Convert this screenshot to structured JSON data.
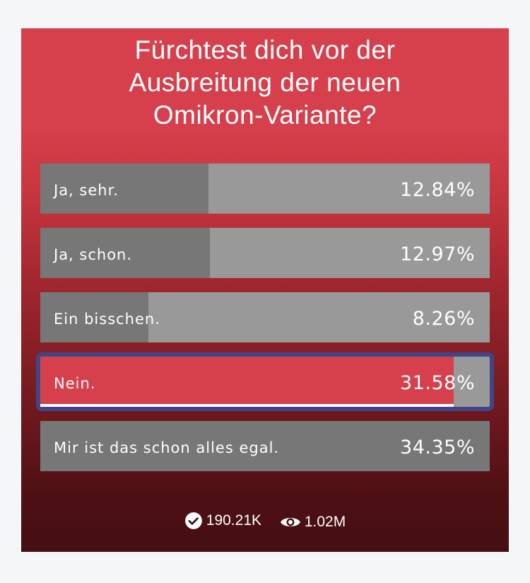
{
  "poll": {
    "title_lines": [
      "Fürchtest dich vor der",
      "Ausbreitung der neuen",
      "Omikron-Variante?"
    ],
    "options": [
      {
        "label": "Ja, sehr.",
        "percent_text": "12.84%",
        "percent": 12.84
      },
      {
        "label": "Ja, schon.",
        "percent_text": "12.97%",
        "percent": 12.97
      },
      {
        "label": "Ein bisschen.",
        "percent_text": "8.26%",
        "percent": 8.26
      },
      {
        "label": "Nein.",
        "percent_text": "31.58%",
        "percent": 31.58,
        "selected": true
      },
      {
        "label": "Mir ist das schon alles egal.",
        "percent_text": "34.35%",
        "percent": 34.35
      }
    ],
    "votes": "190.21K",
    "views": "1.02M"
  },
  "colors": {
    "accent": "#d6404d",
    "selected_border": "#3f4688",
    "bar_fill": "#777777",
    "bar_bg": "#999999"
  }
}
